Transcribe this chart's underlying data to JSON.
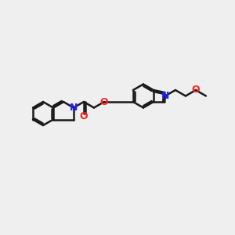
{
  "bg_color": "#efefef",
  "bond_color": "#1a1a1a",
  "N_color": "#2020ff",
  "O_color": "#ff2020",
  "bond_width": 1.8,
  "figsize": [
    3.0,
    3.0
  ],
  "dpi": 100,
  "xlim": [
    0,
    12
  ],
  "ylim": [
    0,
    10
  ]
}
